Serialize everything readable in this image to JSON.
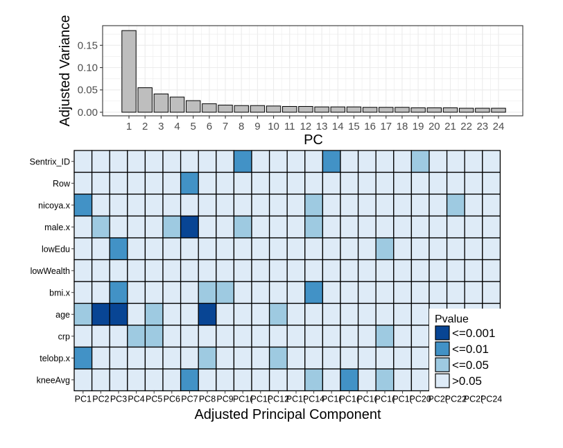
{
  "chart_data": [
    {
      "type": "bar",
      "xlabel": "PC",
      "ylabel": "Adjusted Variance",
      "categories": [
        "1",
        "2",
        "3",
        "4",
        "5",
        "6",
        "7",
        "8",
        "9",
        "10",
        "11",
        "12",
        "13",
        "14",
        "15",
        "16",
        "17",
        "18",
        "19",
        "20",
        "21",
        "22",
        "23",
        "24"
      ],
      "values": [
        0.183,
        0.055,
        0.041,
        0.034,
        0.026,
        0.019,
        0.016,
        0.015,
        0.015,
        0.014,
        0.013,
        0.013,
        0.012,
        0.012,
        0.012,
        0.011,
        0.011,
        0.011,
        0.01,
        0.01,
        0.01,
        0.009,
        0.009,
        0.009
      ],
      "yticks": [
        "0.00",
        "0.05",
        "0.10",
        "0.15"
      ],
      "ylim": [
        -0.008,
        0.194
      ],
      "grid": true,
      "bar_color": "#bebebe"
    },
    {
      "type": "heatmap",
      "xlabel": "Adjusted Principal Component",
      "x": [
        "PC1",
        "PC2",
        "PC3",
        "PC4",
        "PC5",
        "PC6",
        "PC7",
        "PC8",
        "PC9",
        "PC10",
        "PC11",
        "PC12",
        "PC13",
        "PC14",
        "PC15",
        "PC16",
        "PC17",
        "PC18",
        "PC19",
        "PC20",
        "PC21",
        "PC22",
        "PC23",
        "PC24"
      ],
      "x_tick_labels": [
        "PC1",
        "PC2",
        "PC3",
        "PC4",
        "PC5",
        "PC6",
        "PC7",
        "PC8",
        "PC9",
        "PC1(",
        "PC1(",
        "PC12",
        "PC1(",
        "PC14",
        "PC1(",
        "PC1(",
        "PC1(",
        "PC1(",
        "PC1(",
        "PC20",
        "PC2(",
        "PC22",
        "PC2(",
        "PC24"
      ],
      "y": [
        "Sentrix_ID",
        "Row",
        "nicoya.x",
        "male.x",
        "lowEdu",
        "lowWealth",
        "bmi.x",
        "age",
        "crp",
        "telobp.x",
        "kneeAvg"
      ],
      "levels": [
        ">0.05",
        "<=0.05",
        "<=0.01",
        "<=0.001"
      ],
      "level_colors": [
        "#deebf7",
        "#9ecae1",
        "#4292c6",
        "#084594"
      ],
      "cells": [
        [
          0,
          0,
          0,
          0,
          0,
          0,
          0,
          0,
          0,
          2,
          0,
          0,
          0,
          0,
          2,
          0,
          0,
          0,
          0,
          1,
          0,
          0,
          0,
          0
        ],
        [
          0,
          0,
          0,
          0,
          0,
          0,
          2,
          0,
          0,
          0,
          0,
          0,
          0,
          0,
          0,
          0,
          0,
          0,
          0,
          0,
          0,
          0,
          0,
          0
        ],
        [
          2,
          0,
          0,
          0,
          0,
          0,
          0,
          0,
          0,
          0,
          0,
          0,
          0,
          1,
          0,
          0,
          0,
          0,
          0,
          0,
          0,
          1,
          0,
          0
        ],
        [
          0,
          1,
          0,
          0,
          0,
          1,
          3,
          0,
          0,
          1,
          0,
          0,
          0,
          1,
          0,
          0,
          0,
          0,
          0,
          0,
          0,
          0,
          0,
          0
        ],
        [
          0,
          0,
          2,
          0,
          0,
          0,
          0,
          0,
          0,
          0,
          0,
          0,
          0,
          0,
          0,
          0,
          0,
          1,
          0,
          0,
          0,
          0,
          0,
          0
        ],
        [
          0,
          0,
          0,
          0,
          0,
          0,
          0,
          0,
          0,
          0,
          0,
          0,
          0,
          0,
          0,
          0,
          0,
          0,
          0,
          0,
          0,
          0,
          0,
          0
        ],
        [
          0,
          0,
          2,
          0,
          0,
          0,
          0,
          1,
          1,
          0,
          0,
          0,
          0,
          2,
          0,
          0,
          0,
          0,
          0,
          0,
          0,
          0,
          0,
          0
        ],
        [
          1,
          3,
          3,
          0,
          1,
          0,
          0,
          3,
          0,
          0,
          0,
          1,
          0,
          0,
          0,
          0,
          0,
          0,
          0,
          0,
          0,
          0,
          0,
          0
        ],
        [
          0,
          0,
          0,
          1,
          1,
          0,
          0,
          0,
          0,
          0,
          0,
          0,
          0,
          0,
          0,
          0,
          0,
          1,
          0,
          0,
          0,
          0,
          0,
          0
        ],
        [
          2,
          0,
          0,
          0,
          0,
          0,
          0,
          1,
          0,
          0,
          0,
          1,
          0,
          0,
          0,
          0,
          0,
          0,
          0,
          0,
          0,
          0,
          0,
          0
        ],
        [
          0,
          0,
          0,
          0,
          0,
          0,
          2,
          0,
          0,
          0,
          0,
          0,
          0,
          1,
          0,
          2,
          0,
          1,
          0,
          0,
          0,
          0,
          0,
          0
        ]
      ],
      "legend": {
        "title": "Pvalue",
        "entries": [
          "<=0.001",
          "<=0.01",
          "<=0.05",
          ">0.05"
        ],
        "position": "right"
      }
    }
  ]
}
